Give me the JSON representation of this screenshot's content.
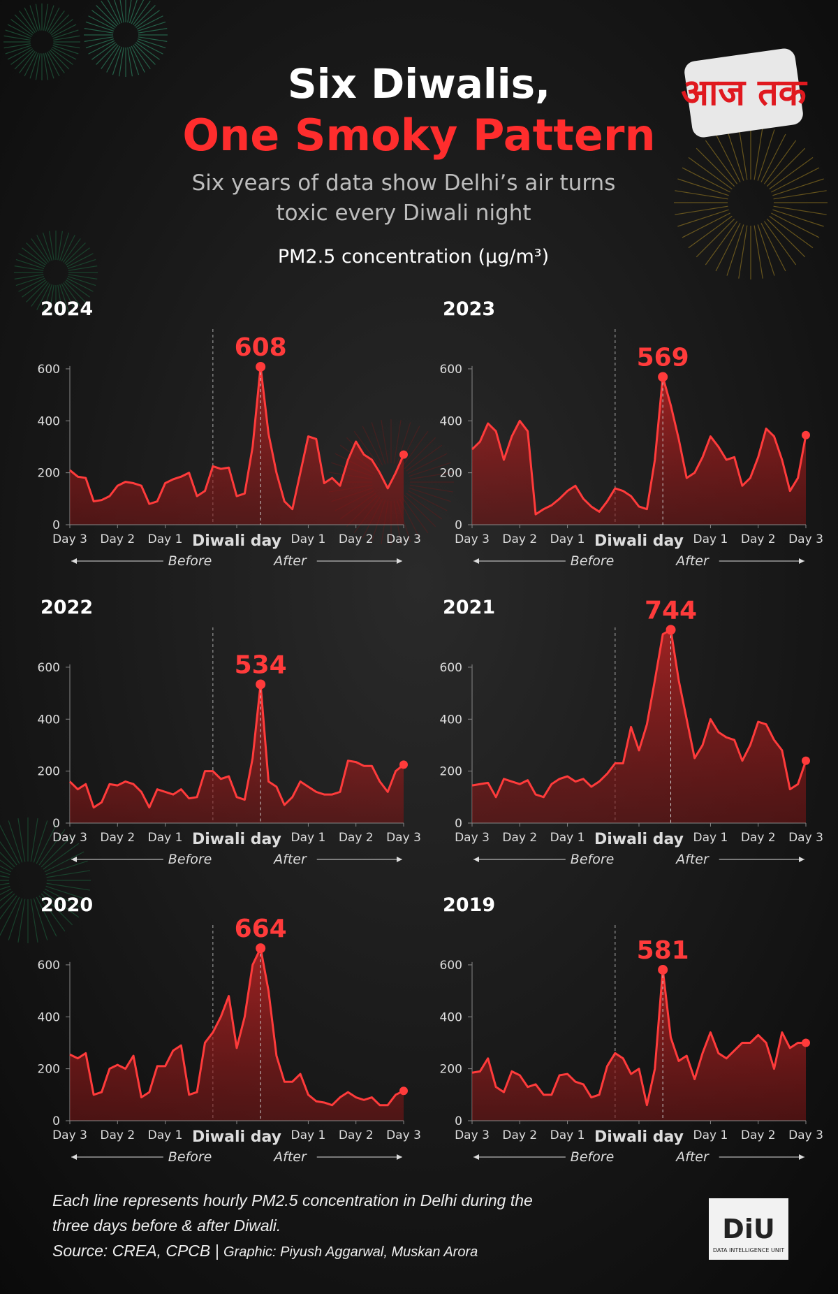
{
  "header": {
    "title": "Six Diwalis,",
    "title_highlight": "One Smoky Pattern",
    "subtitle_lines": [
      "Six years of data show Delhi’s air turns",
      "toxic every Diwali night"
    ],
    "measure": "PM2.5 concentration (µg/m³)",
    "logo": "आज तक"
  },
  "direction_labels": {
    "before": "Before",
    "after": "After"
  },
  "chart_data": [
    {
      "type": "area",
      "title": "2024",
      "color": "#ff3b3b",
      "xlim": [
        0,
        168
      ],
      "ylim": [
        0,
        780
      ],
      "yticks": [
        0,
        200,
        400,
        600
      ],
      "reference_lines": [
        72
      ],
      "xticks": [
        {
          "value": 0,
          "label": "Day 3"
        },
        {
          "value": 24,
          "label": "Day 2"
        },
        {
          "value": 48,
          "label": "Day 1"
        },
        {
          "value": 84,
          "label": "Diwali day"
        },
        {
          "value": 120,
          "label": "Day 1"
        },
        {
          "value": 144,
          "label": "Day 2"
        },
        {
          "value": 168,
          "label": "Day 3"
        }
      ],
      "x": [
        0,
        4,
        8,
        12,
        16,
        20,
        24,
        28,
        32,
        36,
        40,
        44,
        48,
        52,
        56,
        60,
        64,
        68,
        72,
        76,
        80,
        84,
        88,
        92,
        96,
        100,
        104,
        108,
        112,
        116,
        120,
        124,
        128,
        132,
        136,
        140,
        144,
        148,
        152,
        156,
        160,
        164,
        168
      ],
      "values": [
        210,
        185,
        180,
        90,
        95,
        110,
        150,
        165,
        160,
        150,
        80,
        90,
        160,
        175,
        185,
        200,
        110,
        130,
        225,
        215,
        220,
        110,
        120,
        300,
        608,
        350,
        200,
        90,
        60,
        200,
        340,
        330,
        160,
        180,
        150,
        250,
        320,
        270,
        250,
        200,
        140,
        200,
        270
      ]
    },
    {
      "type": "area",
      "title": "2023",
      "color": "#ff3b3b",
      "xlim": [
        0,
        168
      ],
      "ylim": [
        0,
        780
      ],
      "yticks": [
        0,
        200,
        400,
        600
      ],
      "reference_lines": [
        72
      ],
      "xticks": [
        {
          "value": 0,
          "label": "Day 3"
        },
        {
          "value": 24,
          "label": "Day 2"
        },
        {
          "value": 48,
          "label": "Day 1"
        },
        {
          "value": 84,
          "label": "Diwali day"
        },
        {
          "value": 120,
          "label": "Day 1"
        },
        {
          "value": 144,
          "label": "Day 2"
        },
        {
          "value": 168,
          "label": "Day 3"
        }
      ],
      "x": [
        0,
        4,
        8,
        12,
        16,
        20,
        24,
        28,
        32,
        36,
        40,
        44,
        48,
        52,
        56,
        60,
        64,
        68,
        72,
        76,
        80,
        84,
        88,
        92,
        96,
        100,
        104,
        108,
        112,
        116,
        120,
        124,
        128,
        132,
        136,
        140,
        144,
        148,
        152,
        156,
        160,
        164,
        168
      ],
      "values": [
        290,
        320,
        390,
        360,
        250,
        340,
        400,
        360,
        40,
        60,
        75,
        100,
        130,
        150,
        100,
        70,
        50,
        90,
        140,
        130,
        110,
        70,
        60,
        250,
        569,
        460,
        330,
        180,
        200,
        260,
        340,
        300,
        250,
        260,
        150,
        180,
        260,
        370,
        340,
        250,
        130,
        180,
        345
      ]
    },
    {
      "type": "area",
      "title": "2022",
      "color": "#ff3b3b",
      "xlim": [
        0,
        168
      ],
      "ylim": [
        0,
        780
      ],
      "yticks": [
        0,
        200,
        400,
        600
      ],
      "reference_lines": [
        72
      ],
      "xticks": [
        {
          "value": 0,
          "label": "Day 3"
        },
        {
          "value": 24,
          "label": "Day 2"
        },
        {
          "value": 48,
          "label": "Day 1"
        },
        {
          "value": 84,
          "label": "Diwali day"
        },
        {
          "value": 120,
          "label": "Day 1"
        },
        {
          "value": 144,
          "label": "Day 2"
        },
        {
          "value": 168,
          "label": "Day 3"
        }
      ],
      "x": [
        0,
        4,
        8,
        12,
        16,
        20,
        24,
        28,
        32,
        36,
        40,
        44,
        48,
        52,
        56,
        60,
        64,
        68,
        72,
        76,
        80,
        84,
        88,
        92,
        96,
        100,
        104,
        108,
        112,
        116,
        120,
        124,
        128,
        132,
        136,
        140,
        144,
        148,
        152,
        156,
        160,
        164,
        168
      ],
      "values": [
        160,
        130,
        150,
        60,
        80,
        150,
        145,
        160,
        150,
        120,
        60,
        130,
        120,
        110,
        130,
        95,
        100,
        200,
        200,
        170,
        180,
        100,
        90,
        250,
        534,
        160,
        140,
        70,
        100,
        160,
        140,
        120,
        110,
        110,
        120,
        240,
        235,
        220,
        220,
        160,
        120,
        200,
        225
      ]
    },
    {
      "type": "area",
      "title": "2021",
      "color": "#ff3b3b",
      "xlim": [
        0,
        168
      ],
      "ylim": [
        0,
        780
      ],
      "yticks": [
        0,
        200,
        400,
        600
      ],
      "reference_lines": [
        72
      ],
      "xticks": [
        {
          "value": 0,
          "label": "Day 3"
        },
        {
          "value": 24,
          "label": "Day 2"
        },
        {
          "value": 48,
          "label": "Day 1"
        },
        {
          "value": 84,
          "label": "Diwali day"
        },
        {
          "value": 120,
          "label": "Day 1"
        },
        {
          "value": 144,
          "label": "Day 2"
        },
        {
          "value": 168,
          "label": "Day 3"
        }
      ],
      "x": [
        0,
        4,
        8,
        12,
        16,
        20,
        24,
        28,
        32,
        36,
        40,
        44,
        48,
        52,
        56,
        60,
        64,
        68,
        72,
        76,
        80,
        84,
        88,
        92,
        96,
        100,
        104,
        108,
        112,
        116,
        120,
        124,
        128,
        132,
        136,
        140,
        144,
        148,
        152,
        156,
        160,
        164,
        168
      ],
      "values": [
        145,
        150,
        155,
        100,
        170,
        160,
        150,
        165,
        110,
        100,
        150,
        170,
        180,
        160,
        170,
        140,
        160,
        190,
        230,
        230,
        370,
        280,
        380,
        550,
        727,
        744,
        550,
        400,
        250,
        300,
        400,
        350,
        330,
        320,
        240,
        300,
        390,
        380,
        320,
        280,
        130,
        150,
        240
      ]
    },
    {
      "type": "area",
      "title": "2020",
      "color": "#ff3b3b",
      "xlim": [
        0,
        168
      ],
      "ylim": [
        0,
        780
      ],
      "yticks": [
        0,
        200,
        400,
        600
      ],
      "reference_lines": [
        72
      ],
      "xticks": [
        {
          "value": 0,
          "label": "Day 3"
        },
        {
          "value": 24,
          "label": "Day 2"
        },
        {
          "value": 48,
          "label": "Day 1"
        },
        {
          "value": 84,
          "label": "Diwali day"
        },
        {
          "value": 120,
          "label": "Day 1"
        },
        {
          "value": 144,
          "label": "Day 2"
        },
        {
          "value": 168,
          "label": "Day 3"
        }
      ],
      "x": [
        0,
        4,
        8,
        12,
        16,
        20,
        24,
        28,
        32,
        36,
        40,
        44,
        48,
        52,
        56,
        60,
        64,
        68,
        72,
        76,
        80,
        84,
        88,
        92,
        96,
        100,
        104,
        108,
        112,
        116,
        120,
        124,
        128,
        132,
        136,
        140,
        144,
        148,
        152,
        156,
        160,
        164,
        168
      ],
      "values": [
        255,
        240,
        260,
        100,
        110,
        200,
        215,
        200,
        250,
        90,
        110,
        210,
        210,
        270,
        290,
        100,
        110,
        300,
        340,
        400,
        480,
        280,
        400,
        600,
        664,
        500,
        250,
        150,
        150,
        180,
        100,
        75,
        70,
        60,
        90,
        110,
        90,
        80,
        90,
        60,
        60,
        100,
        115
      ]
    },
    {
      "type": "area",
      "title": "2019",
      "color": "#ff3b3b",
      "xlim": [
        0,
        168
      ],
      "ylim": [
        0,
        780
      ],
      "yticks": [
        0,
        200,
        400,
        600
      ],
      "reference_lines": [
        72
      ],
      "xticks": [
        {
          "value": 0,
          "label": "Day 3"
        },
        {
          "value": 24,
          "label": "Day 2"
        },
        {
          "value": 48,
          "label": "Day 1"
        },
        {
          "value": 84,
          "label": "Diwali day"
        },
        {
          "value": 120,
          "label": "Day 1"
        },
        {
          "value": 144,
          "label": "Day 2"
        },
        {
          "value": 168,
          "label": "Day 3"
        }
      ],
      "x": [
        0,
        4,
        8,
        12,
        16,
        20,
        24,
        28,
        32,
        36,
        40,
        44,
        48,
        52,
        56,
        60,
        64,
        68,
        72,
        76,
        80,
        84,
        88,
        92,
        96,
        100,
        104,
        108,
        112,
        116,
        120,
        124,
        128,
        132,
        136,
        140,
        144,
        148,
        152,
        156,
        160,
        164,
        168
      ],
      "values": [
        185,
        190,
        240,
        130,
        110,
        190,
        175,
        130,
        140,
        100,
        100,
        175,
        180,
        150,
        140,
        90,
        100,
        210,
        260,
        240,
        180,
        200,
        60,
        200,
        581,
        320,
        230,
        250,
        160,
        260,
        340,
        260,
        240,
        270,
        300,
        300,
        330,
        300,
        200,
        340,
        280,
        300,
        300
      ]
    }
  ],
  "footer": {
    "note": "Each line represents hourly PM2.5 concentration in Delhi during the three days before & after Diwali.",
    "source": "Source: CREA, CPCB |",
    "credit": "Graphic: Piyush Aggarwal, Muskan Arora",
    "badge": "DiU",
    "badge_sub": "DATA INTELLIGENCE UNIT"
  }
}
